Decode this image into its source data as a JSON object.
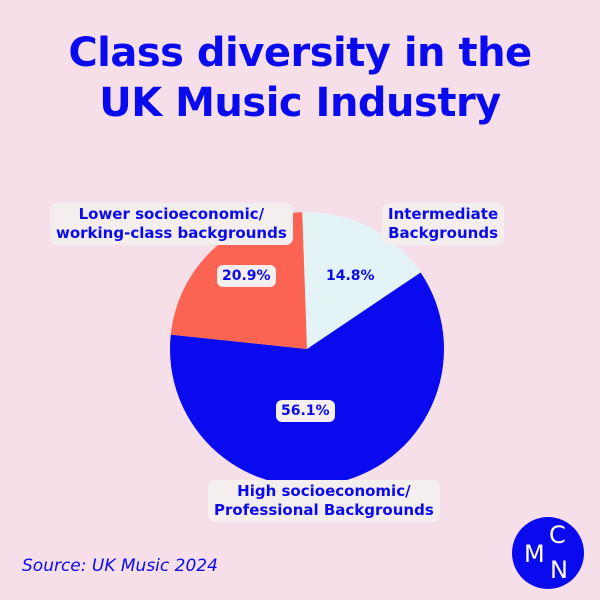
{
  "chart_data": {
    "type": "pie",
    "title": "Class diversity in the UK Music Industry",
    "slices": [
      {
        "label": "Intermediate Backgrounds",
        "value": 14.8,
        "value_label": "14.8%",
        "color": "#e4f3f6"
      },
      {
        "label": "High socioeconomic/ Professional Backgrounds",
        "value": 56.1,
        "value_label": "56.1%",
        "color": "#0a0aee"
      },
      {
        "label": "Lower socioeconomic/ working-class backgrounds",
        "value": 20.9,
        "value_label": "20.9%",
        "color": "#fb6352"
      }
    ]
  },
  "title_lines": [
    "Class diversity in the",
    "UK Music Industry"
  ],
  "labels": {
    "lower": [
      "Lower socioeconomic/",
      "working-class backgrounds"
    ],
    "intermediate": [
      "Intermediate",
      "Backgrounds"
    ],
    "high": [
      "High socioeconomic/",
      "Professional Backgrounds"
    ]
  },
  "source": "Source: UK Music 2024",
  "logo": {
    "letters": [
      "C",
      "M",
      "N"
    ]
  },
  "colors": {
    "background": "#f7dfea",
    "accent": "#0a0aee"
  }
}
